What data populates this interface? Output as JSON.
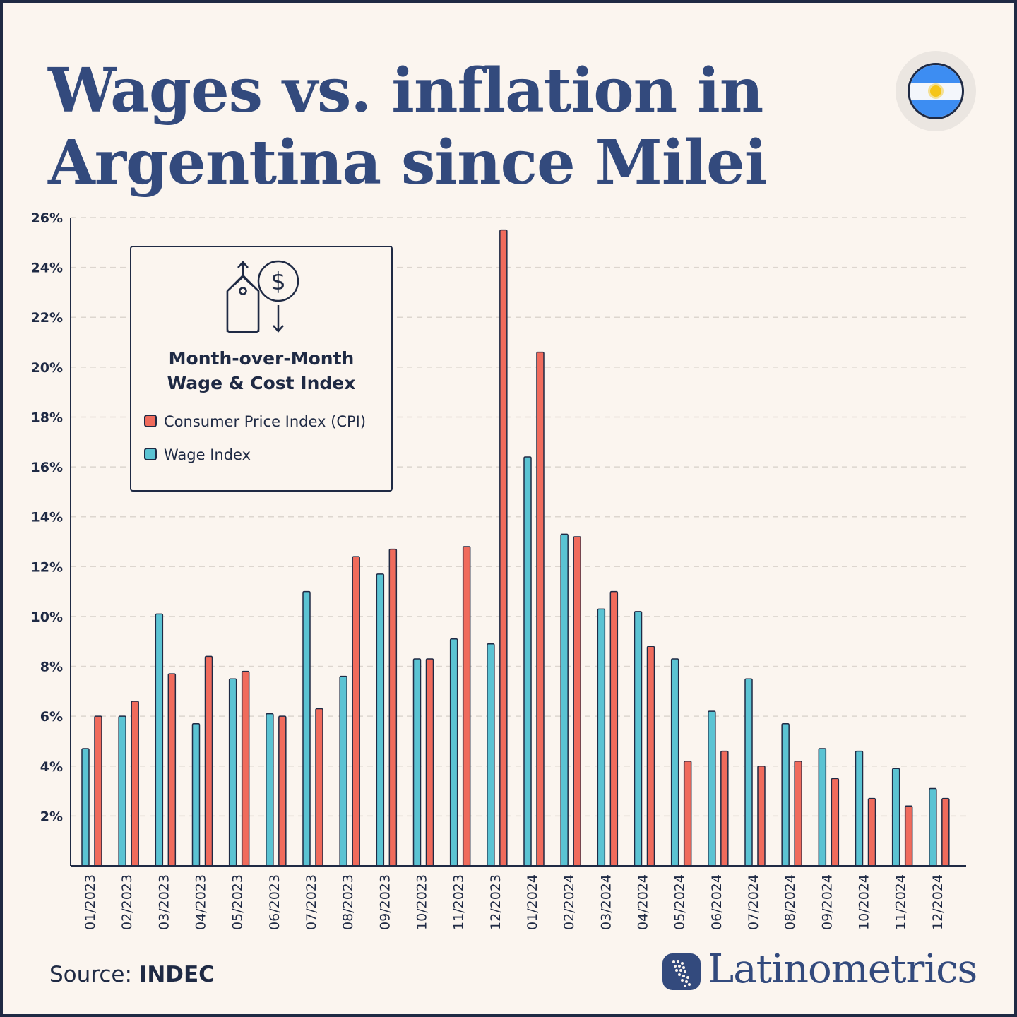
{
  "title": {
    "line1": "Wages vs. inflation in",
    "line2": "Argentina since Milei"
  },
  "flag": {
    "icon": "argentina-flag-icon"
  },
  "legend": {
    "title_line1": "Month-over-Month",
    "title_line2": "Wage & Cost Index",
    "items": [
      {
        "label": "Consumer Price Index (CPI)",
        "color": "#f06b5c"
      },
      {
        "label": "Wage Index",
        "color": "#5bc3d3"
      }
    ],
    "icon": "price-tag-dollar-icon"
  },
  "source": {
    "label": "Source:",
    "value": "INDEC"
  },
  "brand": {
    "name": "Latinometrics"
  },
  "chart_data": {
    "type": "bar",
    "categories": [
      "01/2023",
      "02/2023",
      "03/2023",
      "04/2023",
      "05/2023",
      "06/2023",
      "07/2023",
      "08/2023",
      "09/2023",
      "10/2023",
      "11/2023",
      "12/2023",
      "01/2024",
      "02/2024",
      "03/2024",
      "04/2024",
      "05/2024",
      "06/2024",
      "07/2024",
      "08/2024",
      "09/2024",
      "10/2024",
      "11/2024",
      "12/2024"
    ],
    "series": [
      {
        "name": "Wage Index",
        "color": "#5bc3d3",
        "values": [
          4.7,
          6.0,
          10.1,
          5.7,
          7.5,
          6.1,
          11.0,
          7.6,
          11.7,
          8.3,
          9.1,
          8.9,
          16.4,
          13.3,
          10.3,
          10.2,
          8.3,
          6.2,
          7.5,
          5.7,
          4.7,
          4.6,
          3.9,
          3.1
        ]
      },
      {
        "name": "Consumer Price Index (CPI)",
        "color": "#f06b5c",
        "values": [
          6.0,
          6.6,
          7.7,
          8.4,
          7.8,
          6.0,
          6.3,
          12.4,
          12.7,
          8.3,
          12.8,
          25.5,
          20.6,
          13.2,
          11.0,
          8.8,
          4.2,
          4.6,
          4.0,
          4.2,
          3.5,
          2.7,
          2.4,
          2.7
        ]
      }
    ],
    "ylim": [
      0,
      26
    ],
    "yticks": [
      "2%",
      "4%",
      "6%",
      "8%",
      "10%",
      "12%",
      "14%",
      "16%",
      "18%",
      "20%",
      "22%",
      "24%",
      "26%"
    ],
    "ytick_values": [
      2,
      4,
      6,
      8,
      10,
      12,
      14,
      16,
      18,
      20,
      22,
      24,
      26
    ],
    "grid": true,
    "legend_position": "top-left"
  }
}
